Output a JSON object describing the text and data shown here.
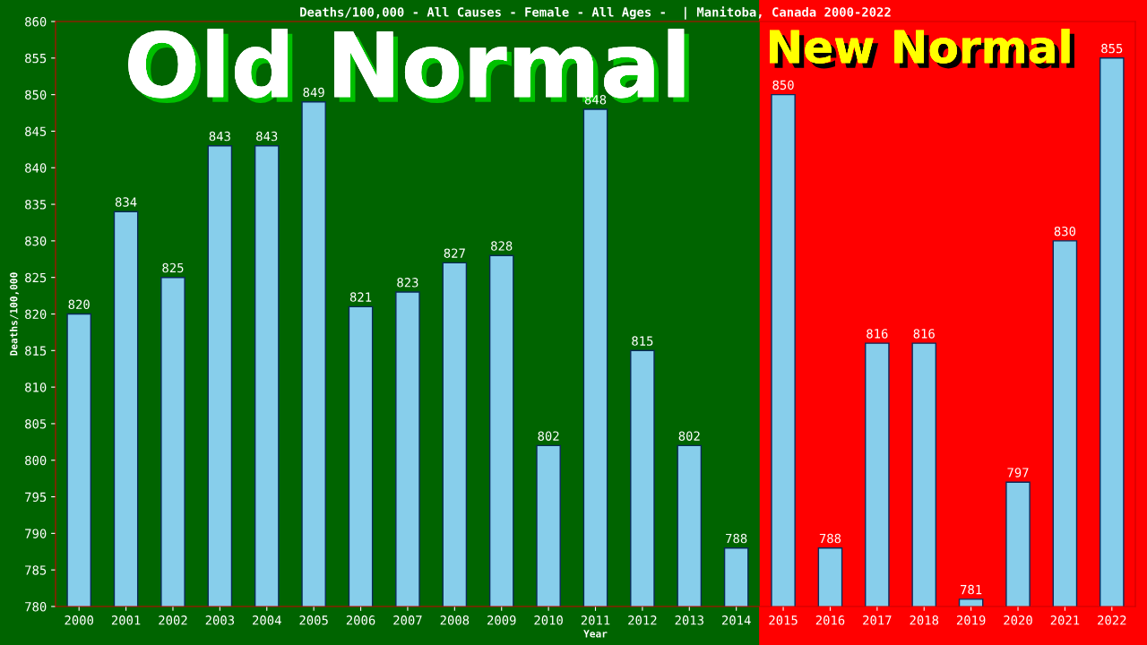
{
  "chart_data": {
    "type": "bar",
    "title": "Deaths/100,000 - All Causes - Female - All Ages -  | Manitoba, Canada 2000-2022",
    "xlabel": "Year",
    "ylabel": "Deaths/100,000",
    "categories": [
      "2000",
      "2001",
      "2002",
      "2003",
      "2004",
      "2005",
      "2006",
      "2007",
      "2008",
      "2009",
      "2010",
      "2011",
      "2012",
      "2013",
      "2014",
      "2015",
      "2016",
      "2017",
      "2018",
      "2019",
      "2020",
      "2021",
      "2022"
    ],
    "values": [
      820,
      834,
      825,
      843,
      843,
      849,
      821,
      823,
      827,
      828,
      802,
      848,
      815,
      802,
      788,
      850,
      788,
      816,
      816,
      781,
      797,
      830,
      855
    ],
    "color": "#87ceeb",
    "ylim": [
      780,
      860
    ],
    "yticks": [
      780,
      785,
      790,
      795,
      800,
      805,
      810,
      815,
      820,
      825,
      830,
      835,
      840,
      845,
      850,
      855,
      860
    ],
    "grid": false,
    "data_labels": true,
    "bands": [
      {
        "axis": "x",
        "from": "2000",
        "to": "2014",
        "label": "Old Normal",
        "color": "#006400"
      },
      {
        "axis": "x",
        "from": "2015",
        "to": "2022",
        "label": "New Normal",
        "color": "#ff0000"
      }
    ]
  }
}
